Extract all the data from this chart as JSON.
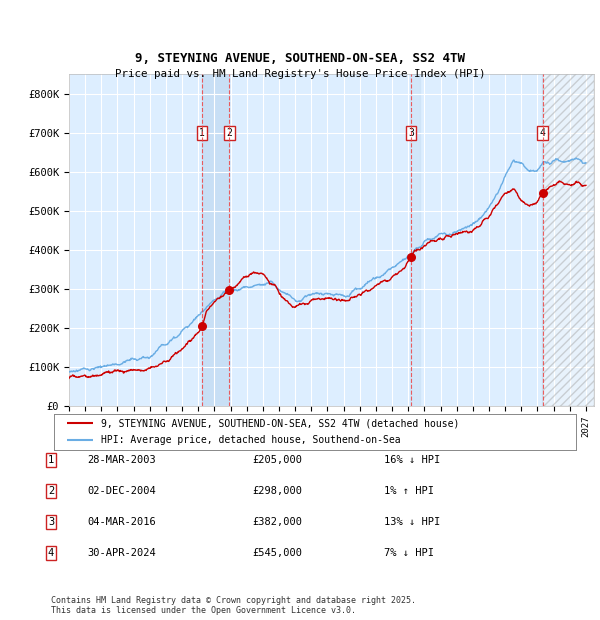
{
  "title": "9, STEYNING AVENUE, SOUTHEND-ON-SEA, SS2 4TW",
  "subtitle": "Price paid vs. HM Land Registry's House Price Index (HPI)",
  "ylim": [
    0,
    850000
  ],
  "yticks": [
    0,
    100000,
    200000,
    300000,
    400000,
    500000,
    600000,
    700000,
    800000
  ],
  "ytick_labels": [
    "£0",
    "£100K",
    "£200K",
    "£300K",
    "£400K",
    "£500K",
    "£600K",
    "£700K",
    "£800K"
  ],
  "transactions": [
    {
      "date": 2003.23,
      "price": 205000,
      "label": "1"
    },
    {
      "date": 2004.92,
      "price": 298000,
      "label": "2"
    },
    {
      "date": 2016.17,
      "price": 382000,
      "label": "3"
    },
    {
      "date": 2024.33,
      "price": 545000,
      "label": "4"
    }
  ],
  "legend_entries": [
    "9, STEYNING AVENUE, SOUTHEND-ON-SEA, SS2 4TW (detached house)",
    "HPI: Average price, detached house, Southend-on-Sea"
  ],
  "hpi_color": "#6aade4",
  "price_color": "#cc0000",
  "bg_color": "#ddeeff",
  "grid_color": "#ffffff",
  "footnote": "Contains HM Land Registry data © Crown copyright and database right 2025.\nThis data is licensed under the Open Government Licence v3.0.",
  "xlim_start": 1995.0,
  "xlim_end": 2027.5,
  "dates_list": [
    "28-MAR-2003",
    "02-DEC-2004",
    "04-MAR-2016",
    "30-APR-2024"
  ],
  "prices_list": [
    "£205,000",
    "£298,000",
    "£382,000",
    "£545,000"
  ],
  "hpi_list": [
    "16% ↓ HPI",
    "1% ↑ HPI",
    "13% ↓ HPI",
    "7% ↓ HPI"
  ]
}
